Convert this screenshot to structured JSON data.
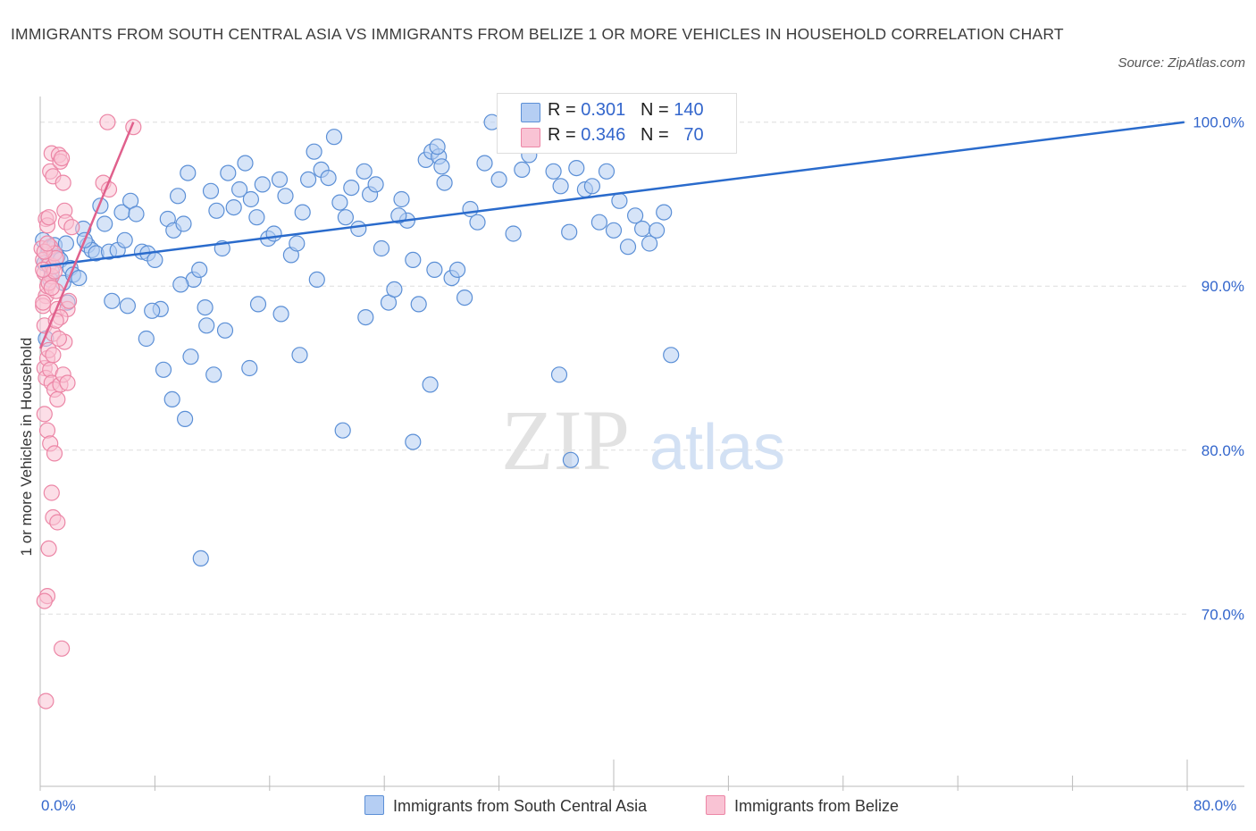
{
  "title": "IMMIGRANTS FROM SOUTH CENTRAL ASIA VS IMMIGRANTS FROM BELIZE 1 OR MORE VEHICLES IN HOUSEHOLD CORRELATION CHART",
  "source": "Source: ZipAtlas.com",
  "watermark": {
    "zip": "ZIP",
    "atlas": "atlas"
  },
  "colors": {
    "blue_fill": "#b5cef3",
    "blue_stroke": "#5b8fd6",
    "blue_line": "#2a6bcc",
    "pink_fill": "#f9c3d4",
    "pink_stroke": "#ec86a6",
    "pink_line": "#e0608c",
    "axis_label": "#3366cc",
    "grid": "#dddddd"
  },
  "legend_top": [
    {
      "r_label": "R =",
      "r": "0.301",
      "n_label": "N =",
      "n": "140"
    },
    {
      "r_label": "R =",
      "r": "0.346",
      "n_label": "N =",
      "n": "70"
    }
  ],
  "chart_data": {
    "type": "scatter",
    "xlabel": "",
    "ylabel": "1 or more Vehicles in Household",
    "x_range": [
      0,
      80
    ],
    "y_range": [
      59.5,
      102
    ],
    "x_tick_labels": [
      "0.0%",
      "80.0%"
    ],
    "y_ticks": [
      70,
      80,
      90,
      100
    ],
    "y_tick_labels": [
      "70.0%",
      "80.0%",
      "90.0%",
      "100.0%"
    ],
    "grid": "horizontal dashed",
    "legend_position": "top-center",
    "series": [
      {
        "name": "Immigrants from South Central Asia",
        "r": 0.301,
        "n": 140,
        "trend": {
          "x": [
            0,
            79.8
          ],
          "y": [
            91.2,
            100
          ]
        },
        "points": [
          [
            0.2,
            92.8
          ],
          [
            0.3,
            91.4
          ],
          [
            0.5,
            91.9
          ],
          [
            0.6,
            92.3
          ],
          [
            0.8,
            90.9
          ],
          [
            1.0,
            92.5
          ],
          [
            1.2,
            91.8
          ],
          [
            1.4,
            91.6
          ],
          [
            0.4,
            86.8
          ],
          [
            0.7,
            90.4
          ],
          [
            1.6,
            90.2
          ],
          [
            1.9,
            89.0
          ],
          [
            2.1,
            91.1
          ],
          [
            2.3,
            90.7
          ],
          [
            1.8,
            92.6
          ],
          [
            2.7,
            90.5
          ],
          [
            3.0,
            93.5
          ],
          [
            3.3,
            92.5
          ],
          [
            3.6,
            92.2
          ],
          [
            3.1,
            92.8
          ],
          [
            4.2,
            94.9
          ],
          [
            3.9,
            92.0
          ],
          [
            4.5,
            93.8
          ],
          [
            4.8,
            92.1
          ],
          [
            5.0,
            89.1
          ],
          [
            5.4,
            92.2
          ],
          [
            5.7,
            94.5
          ],
          [
            5.9,
            92.8
          ],
          [
            6.3,
            95.2
          ],
          [
            6.7,
            94.4
          ],
          [
            7.1,
            92.1
          ],
          [
            7.5,
            92.0
          ],
          [
            8.0,
            91.6
          ],
          [
            8.4,
            88.6
          ],
          [
            8.9,
            94.1
          ],
          [
            9.3,
            93.4
          ],
          [
            9.6,
            95.5
          ],
          [
            10.0,
            93.8
          ],
          [
            10.3,
            96.9
          ],
          [
            10.7,
            90.4
          ],
          [
            11.1,
            91.0
          ],
          [
            11.5,
            88.7
          ],
          [
            11.9,
            95.8
          ],
          [
            12.3,
            94.6
          ],
          [
            12.7,
            92.3
          ],
          [
            13.1,
            96.9
          ],
          [
            13.5,
            94.8
          ],
          [
            13.9,
            95.9
          ],
          [
            14.3,
            97.5
          ],
          [
            14.7,
            95.3
          ],
          [
            15.1,
            94.2
          ],
          [
            15.5,
            96.2
          ],
          [
            15.9,
            92.9
          ],
          [
            16.3,
            93.2
          ],
          [
            16.7,
            96.5
          ],
          [
            17.1,
            95.5
          ],
          [
            17.5,
            91.9
          ],
          [
            17.9,
            92.6
          ],
          [
            18.3,
            94.5
          ],
          [
            18.7,
            96.5
          ],
          [
            19.1,
            98.2
          ],
          [
            19.6,
            97.1
          ],
          [
            20.1,
            96.6
          ],
          [
            20.5,
            99.1
          ],
          [
            20.9,
            95.1
          ],
          [
            21.3,
            94.2
          ],
          [
            21.7,
            96.0
          ],
          [
            22.2,
            93.5
          ],
          [
            22.6,
            97.0
          ],
          [
            23.0,
            95.6
          ],
          [
            23.4,
            96.2
          ],
          [
            23.8,
            92.3
          ],
          [
            24.3,
            89.0
          ],
          [
            24.7,
            89.8
          ],
          [
            25.2,
            95.3
          ],
          [
            25.6,
            94.0
          ],
          [
            26.0,
            91.6
          ],
          [
            26.4,
            88.9
          ],
          [
            26.9,
            97.7
          ],
          [
            27.3,
            98.2
          ],
          [
            27.8,
            97.9
          ],
          [
            28.2,
            96.3
          ],
          [
            28.7,
            90.5
          ],
          [
            29.1,
            91.0
          ],
          [
            29.6,
            89.3
          ],
          [
            30.0,
            94.7
          ],
          [
            30.5,
            93.9
          ],
          [
            31.0,
            97.5
          ],
          [
            27.5,
            91.0
          ],
          [
            25.0,
            94.3
          ],
          [
            28.0,
            97.3
          ],
          [
            27.7,
            98.5
          ],
          [
            31.5,
            100.0
          ],
          [
            32.0,
            96.5
          ],
          [
            32.5,
            100.0
          ],
          [
            33.0,
            93.2
          ],
          [
            33.6,
            97.1
          ],
          [
            34.1,
            98.0
          ],
          [
            34.6,
            100.0
          ],
          [
            35.2,
            100.0
          ],
          [
            35.8,
            97.0
          ],
          [
            36.3,
            96.1
          ],
          [
            36.9,
            93.3
          ],
          [
            37.4,
            97.2
          ],
          [
            38.0,
            95.9
          ],
          [
            38.5,
            96.1
          ],
          [
            39.0,
            93.9
          ],
          [
            39.5,
            97.0
          ],
          [
            40.0,
            93.4
          ],
          [
            40.4,
            95.2
          ],
          [
            41.0,
            92.4
          ],
          [
            41.5,
            94.3
          ],
          [
            42.0,
            93.5
          ],
          [
            42.5,
            92.6
          ],
          [
            43.0,
            93.4
          ],
          [
            43.5,
            94.5
          ],
          [
            44.0,
            85.8
          ],
          [
            36.2,
            84.6
          ],
          [
            37.0,
            79.4
          ],
          [
            27.2,
            84.0
          ],
          [
            26.0,
            80.5
          ],
          [
            6.1,
            88.8
          ],
          [
            7.4,
            86.8
          ],
          [
            8.6,
            84.9
          ],
          [
            9.2,
            83.1
          ],
          [
            10.5,
            85.7
          ],
          [
            12.1,
            84.6
          ],
          [
            11.6,
            87.6
          ],
          [
            12.9,
            87.3
          ],
          [
            14.6,
            85.0
          ],
          [
            18.1,
            85.8
          ],
          [
            21.1,
            81.2
          ],
          [
            10.1,
            81.9
          ],
          [
            11.2,
            73.4
          ],
          [
            7.8,
            88.5
          ],
          [
            9.8,
            90.1
          ],
          [
            15.2,
            88.9
          ],
          [
            16.8,
            88.3
          ],
          [
            19.3,
            90.4
          ],
          [
            22.7,
            88.1
          ]
        ]
      },
      {
        "name": "Immigrants from Belize",
        "r": 0.346,
        "n": 70,
        "trend": {
          "x": [
            0,
            6.5
          ],
          "y": [
            86.2,
            100
          ]
        },
        "points": [
          [
            0.1,
            92.3
          ],
          [
            0.2,
            91.6
          ],
          [
            0.3,
            90.8
          ],
          [
            0.4,
            89.4
          ],
          [
            0.5,
            90.0
          ],
          [
            0.2,
            88.8
          ],
          [
            0.3,
            87.6
          ],
          [
            0.6,
            91.3
          ],
          [
            0.7,
            92.4
          ],
          [
            0.8,
            90.6
          ],
          [
            0.9,
            91.2
          ],
          [
            1.0,
            92.0
          ],
          [
            1.1,
            89.7
          ],
          [
            1.2,
            88.6
          ],
          [
            0.4,
            94.1
          ],
          [
            0.5,
            93.7
          ],
          [
            0.6,
            94.2
          ],
          [
            0.7,
            97.0
          ],
          [
            0.8,
            98.1
          ],
          [
            0.9,
            96.7
          ],
          [
            1.3,
            98.0
          ],
          [
            1.4,
            97.6
          ],
          [
            1.5,
            97.8
          ],
          [
            1.6,
            96.3
          ],
          [
            1.7,
            94.6
          ],
          [
            1.8,
            93.9
          ],
          [
            0.3,
            85.0
          ],
          [
            0.4,
            84.4
          ],
          [
            0.5,
            85.6
          ],
          [
            0.6,
            86.1
          ],
          [
            0.7,
            84.9
          ],
          [
            0.8,
            84.1
          ],
          [
            1.0,
            83.7
          ],
          [
            1.2,
            83.1
          ],
          [
            1.4,
            84.0
          ],
          [
            1.6,
            84.6
          ],
          [
            1.9,
            84.1
          ],
          [
            0.3,
            82.2
          ],
          [
            0.5,
            81.2
          ],
          [
            0.7,
            80.4
          ],
          [
            1.0,
            79.8
          ],
          [
            0.8,
            77.4
          ],
          [
            0.9,
            75.9
          ],
          [
            1.2,
            75.6
          ],
          [
            0.6,
            74.0
          ],
          [
            0.5,
            71.1
          ],
          [
            0.3,
            70.8
          ],
          [
            1.5,
            67.9
          ],
          [
            0.4,
            64.7
          ],
          [
            1.9,
            88.6
          ],
          [
            2.0,
            89.1
          ],
          [
            1.4,
            88.1
          ],
          [
            0.9,
            87.1
          ],
          [
            1.7,
            86.6
          ],
          [
            2.2,
            93.6
          ],
          [
            4.4,
            96.3
          ],
          [
            4.8,
            95.9
          ],
          [
            6.5,
            99.7
          ],
          [
            4.7,
            100.0
          ],
          [
            0.2,
            89.0
          ],
          [
            0.6,
            90.2
          ],
          [
            0.8,
            89.9
          ],
          [
            1.0,
            90.9
          ],
          [
            1.1,
            91.7
          ],
          [
            0.2,
            91.0
          ],
          [
            0.3,
            92.1
          ],
          [
            0.5,
            92.6
          ],
          [
            0.9,
            85.8
          ],
          [
            1.1,
            87.9
          ],
          [
            1.3,
            86.8
          ]
        ]
      }
    ]
  }
}
